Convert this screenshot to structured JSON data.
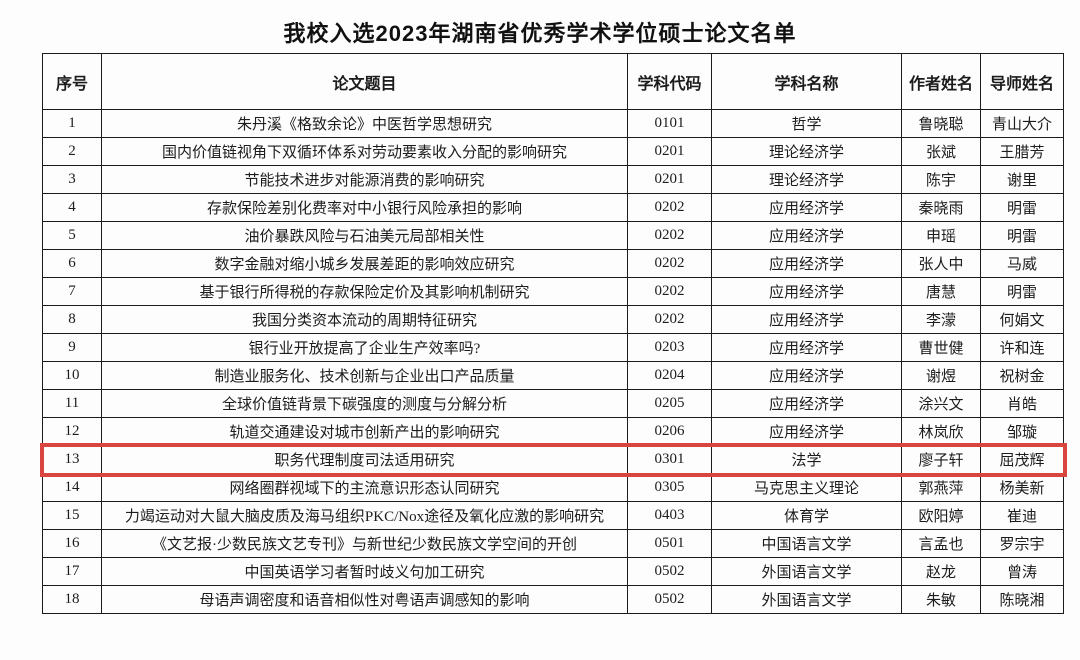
{
  "page": {
    "title": "我校入选2023年湖南省优秀学术学位硕士论文名单"
  },
  "table": {
    "headers": [
      "序号",
      "论文题目",
      "学科代码",
      "学科名称",
      "作者姓名",
      "导师姓名"
    ],
    "rows": [
      {
        "no": "1",
        "title": "朱丹溪《格致余论》中医哲学思想研究",
        "code": "0101",
        "subject": "哲学",
        "author": "鲁晓聪",
        "advisor": "青山大介"
      },
      {
        "no": "2",
        "title": "国内价值链视角下双循环体系对劳动要素收入分配的影响研究",
        "code": "0201",
        "subject": "理论经济学",
        "author": "张斌",
        "advisor": "王腊芳"
      },
      {
        "no": "3",
        "title": "节能技术进步对能源消费的影响研究",
        "code": "0201",
        "subject": "理论经济学",
        "author": "陈宇",
        "advisor": "谢里"
      },
      {
        "no": "4",
        "title": "存款保险差别化费率对中小银行风险承担的影响",
        "code": "0202",
        "subject": "应用经济学",
        "author": "秦晓雨",
        "advisor": "明雷"
      },
      {
        "no": "5",
        "title": "油价暴跌风险与石油美元局部相关性",
        "code": "0202",
        "subject": "应用经济学",
        "author": "申瑶",
        "advisor": "明雷"
      },
      {
        "no": "6",
        "title": "数字金融对缩小城乡发展差距的影响效应研究",
        "code": "0202",
        "subject": "应用经济学",
        "author": "张人中",
        "advisor": "马威"
      },
      {
        "no": "7",
        "title": "基于银行所得税的存款保险定价及其影响机制研究",
        "code": "0202",
        "subject": "应用经济学",
        "author": "唐慧",
        "advisor": "明雷"
      },
      {
        "no": "8",
        "title": "我国分类资本流动的周期特征研究",
        "code": "0202",
        "subject": "应用经济学",
        "author": "李濛",
        "advisor": "何娟文"
      },
      {
        "no": "9",
        "title": "银行业开放提高了企业生产效率吗?",
        "code": "0203",
        "subject": "应用经济学",
        "author": "曹世健",
        "advisor": "许和连"
      },
      {
        "no": "10",
        "title": "制造业服务化、技术创新与企业出口产品质量",
        "code": "0204",
        "subject": "应用经济学",
        "author": "谢煜",
        "advisor": "祝树金"
      },
      {
        "no": "11",
        "title": "全球价值链背景下碳强度的测度与分解分析",
        "code": "0205",
        "subject": "应用经济学",
        "author": "涂兴文",
        "advisor": "肖皓"
      },
      {
        "no": "12",
        "title": "轨道交通建设对城市创新产出的影响研究",
        "code": "0206",
        "subject": "应用经济学",
        "author": "林岚欣",
        "advisor": "邹璇"
      },
      {
        "no": "13",
        "title": "职务代理制度司法适用研究",
        "code": "0301",
        "subject": "法学",
        "author": "廖子轩",
        "advisor": "屈茂辉"
      },
      {
        "no": "14",
        "title": "网络圈群视域下的主流意识形态认同研究",
        "code": "0305",
        "subject": "马克思主义理论",
        "author": "郭燕萍",
        "advisor": "杨美新"
      },
      {
        "no": "15",
        "title": "力竭运动对大鼠大脑皮质及海马组织PKC/Nox途径及氧化应激的影响研究",
        "code": "0403",
        "subject": "体育学",
        "author": "欧阳婷",
        "advisor": "崔迪"
      },
      {
        "no": "16",
        "title": "《文艺报·少数民族文艺专刊》与新世纪少数民族文学空间的开创",
        "code": "0501",
        "subject": "中国语言文学",
        "author": "言孟也",
        "advisor": "罗宗宇"
      },
      {
        "no": "17",
        "title": "中国英语学习者暂时歧义句加工研究",
        "code": "0502",
        "subject": "外国语言文学",
        "author": "赵龙",
        "advisor": "曾涛"
      },
      {
        "no": "18",
        "title": "母语声调密度和语音相似性对粤语声调感知的影响",
        "code": "0502",
        "subject": "外国语言文学",
        "author": "朱敏",
        "advisor": "陈晓湘"
      }
    ],
    "highlighted_row_no": 13
  },
  "colors": {
    "highlight_red": "#d9453f",
    "border_black": "#1b1b1b"
  }
}
